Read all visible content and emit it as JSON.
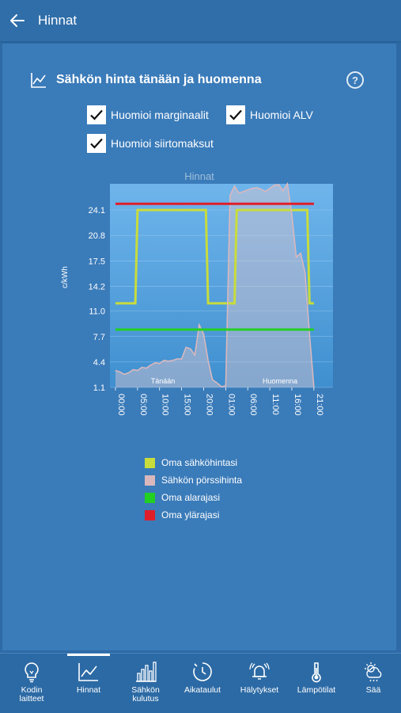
{
  "header": {
    "title": "Hinnat"
  },
  "section": {
    "title": "Sähkön hinta tänään ja huomenna",
    "help": "?"
  },
  "checkboxes": [
    {
      "label": "Huomioi marginaalit",
      "checked": true
    },
    {
      "label": "Huomioi ALV",
      "checked": true
    },
    {
      "label": "Huomioi siirtomaksut",
      "checked": true
    }
  ],
  "chart_data": {
    "type": "line",
    "title": "Hinnat",
    "ylabel": "c/kWh",
    "xlabel": "",
    "ylim": [
      1.1,
      27.5
    ],
    "y_ticks": [
      "24.1",
      "20.8",
      "17.5",
      "14.2",
      "11.0",
      "7.7",
      "4.4",
      "1.1"
    ],
    "x_ticks": [
      "00:00",
      "05:00",
      "10:00",
      "15:00",
      "20:00",
      "01:00",
      "06:00",
      "11:00",
      "16:00",
      "21:00"
    ],
    "x_tick_hours": [
      0,
      5,
      10,
      15,
      20,
      25,
      30,
      35,
      40,
      45
    ],
    "xlim": [
      0,
      47
    ],
    "day_labels": [
      "Tänään",
      "Huomenna"
    ],
    "series": [
      {
        "name": "Oma sähköhintasi",
        "color": "#c8dc3c",
        "x": [
          0,
          4.5,
          5,
          20.5,
          21,
          27,
          27.5,
          43.5,
          44,
          45
        ],
        "values": [
          12,
          12,
          24.1,
          24.1,
          12,
          12,
          24.1,
          24.1,
          12,
          12
        ]
      },
      {
        "name": "Sähkön pörssihinta",
        "color": "#d9b8bd",
        "x": [
          0,
          1,
          2,
          3,
          4,
          5,
          6,
          7,
          8,
          9,
          10,
          11,
          12,
          13,
          14,
          15,
          16,
          17,
          18,
          19,
          20,
          21,
          22,
          23,
          24,
          25,
          26,
          27,
          28,
          29,
          30,
          31,
          32,
          33,
          34,
          35,
          36,
          37,
          38,
          39,
          40,
          41,
          42,
          43,
          44,
          45
        ],
        "values": [
          3.3,
          3.1,
          2.8,
          3.0,
          3.4,
          3.3,
          3.7,
          3.6,
          4.0,
          4.3,
          4.2,
          4.6,
          4.5,
          4.6,
          4.8,
          4.8,
          6.3,
          6.1,
          5.3,
          9.2,
          8.0,
          4.6,
          2.1,
          1.7,
          1.2,
          1.3,
          26.0,
          27.2,
          26.3,
          26.5,
          26.7,
          26.9,
          27.0,
          26.8,
          26.5,
          26.9,
          27.3,
          27.4,
          26.6,
          27.5,
          23.5,
          18.0,
          18.5,
          16.0,
          8.0,
          1.1
        ]
      },
      {
        "name": "Oma alarajasi",
        "color": "#22d022",
        "x": [
          0,
          45
        ],
        "values": [
          8.6,
          8.6
        ]
      },
      {
        "name": "Oma ylärajasi",
        "color": "#e01e2a",
        "x": [
          0,
          45
        ],
        "values": [
          24.9,
          24.9
        ]
      }
    ],
    "legend": "below"
  },
  "nav": {
    "items": [
      {
        "label": "Kodin laitteet",
        "icon": "bulb-icon"
      },
      {
        "label": "Hinnat",
        "icon": "chart-line-icon"
      },
      {
        "label": "Sähkön kulutus",
        "icon": "bar-chart-icon"
      },
      {
        "label": "Aikataulut",
        "icon": "timer-icon"
      },
      {
        "label": "Hälytykset",
        "icon": "alarm-bell-icon"
      },
      {
        "label": "Lämpötilat",
        "icon": "thermometer-icon"
      },
      {
        "label": "Sää",
        "icon": "weather-icon"
      }
    ]
  }
}
